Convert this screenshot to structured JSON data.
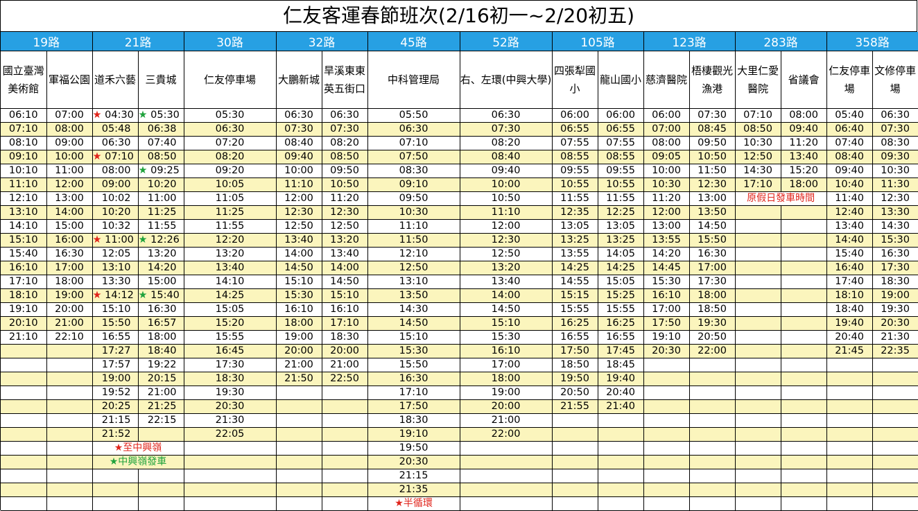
{
  "title": "仁友客運春節班次(2/16初一~2/20初五)",
  "routes": [
    {
      "name": "19路",
      "stops": [
        "國立臺灣美術館",
        "軍福公園"
      ]
    },
    {
      "name": "21路",
      "stops": [
        "道禾六藝",
        "三貴城"
      ]
    },
    {
      "name": "30路",
      "stops": [
        "仁友停車場"
      ]
    },
    {
      "name": "32路",
      "stops": [
        "大鵬新城",
        "旱溪東東英五街口"
      ]
    },
    {
      "name": "45路",
      "stops": [
        "中科管理局"
      ]
    },
    {
      "name": "52路",
      "stops": [
        "右、左環(中興大學)"
      ]
    },
    {
      "name": "105路",
      "stops": [
        "四張犁國小",
        "龍山國小"
      ]
    },
    {
      "name": "123路",
      "stops": [
        "慈濟醫院",
        "梧棲觀光漁港"
      ]
    },
    {
      "name": "283路",
      "stops": [
        "大里仁愛醫院",
        "省議會"
      ]
    },
    {
      "name": "358路",
      "stops": [
        "仁友停車場",
        "文修停車場"
      ]
    }
  ],
  "star": "★",
  "columns": [
    [
      "06:10",
      "07:10",
      "08:10",
      "09:10",
      "10:10",
      "11:10",
      "12:10",
      "13:10",
      "14:10",
      "15:10",
      "15:40",
      "16:10",
      "17:10",
      "18:10",
      "19:10",
      "20:10",
      "21:10"
    ],
    [
      "07:00",
      "08:00",
      "09:00",
      "10:00",
      "11:00",
      "12:00",
      "13:00",
      "14:00",
      "15:00",
      "16:00",
      "16:30",
      "17:00",
      "18:00",
      "19:00",
      "20:00",
      "21:00",
      "22:10"
    ],
    [
      "04:30",
      "05:48",
      "06:30",
      "07:10",
      "08:00",
      "09:00",
      "10:02",
      "10:20",
      "10:32",
      "11:00",
      "12:05",
      "13:10",
      "13:30",
      "14:12",
      "15:10",
      "15:50",
      "16:55",
      "17:27",
      "17:57",
      "19:00",
      "19:52",
      "20:25",
      "21:15",
      "21:52"
    ],
    [
      "05:30",
      "06:38",
      "07:40",
      "08:50",
      "09:25",
      "10:20",
      "11:00",
      "11:25",
      "11:55",
      "12:26",
      "13:20",
      "14:20",
      "15:00",
      "15:40",
      "16:30",
      "16:57",
      "18:00",
      "18:40",
      "19:22",
      "20:15",
      "21:00",
      "21:25",
      "22:15"
    ],
    [
      "05:30",
      "06:30",
      "07:20",
      "08:20",
      "09:20",
      "10:05",
      "11:05",
      "11:25",
      "11:55",
      "12:20",
      "13:20",
      "13:40",
      "14:10",
      "14:25",
      "15:05",
      "15:20",
      "15:55",
      "16:45",
      "17:30",
      "18:30",
      "19:30",
      "20:30",
      "21:30",
      "22:05"
    ],
    [
      "06:30",
      "07:30",
      "08:40",
      "09:40",
      "10:00",
      "11:10",
      "12:00",
      "12:30",
      "12:50",
      "13:40",
      "14:00",
      "14:50",
      "15:10",
      "15:30",
      "16:10",
      "18:00",
      "19:00",
      "20:00",
      "21:00",
      "21:50"
    ],
    [
      "06:30",
      "07:30",
      "08:20",
      "08:50",
      "09:50",
      "10:50",
      "11:20",
      "12:30",
      "12:50",
      "13:20",
      "13:40",
      "14:00",
      "14:50",
      "15:10",
      "16:10",
      "17:10",
      "18:30",
      "20:00",
      "21:00",
      "22:50"
    ],
    [
      "05:50",
      "06:30",
      "07:10",
      "07:50",
      "08:30",
      "09:10",
      "09:50",
      "10:30",
      "11:10",
      "11:50",
      "12:10",
      "12:50",
      "13:10",
      "13:50",
      "14:30",
      "14:50",
      "15:10",
      "15:30",
      "15:50",
      "16:30",
      "17:10",
      "17:50",
      "18:30",
      "19:10",
      "19:50",
      "20:30",
      "21:15",
      "21:35"
    ],
    [
      "06:30",
      "07:30",
      "08:20",
      "08:40",
      "09:40",
      "10:00",
      "10:50",
      "11:10",
      "12:00",
      "12:30",
      "12:50",
      "13:20",
      "13:40",
      "14:00",
      "14:50",
      "15:10",
      "15:30",
      "16:10",
      "17:00",
      "18:00",
      "19:00",
      "20:00",
      "21:00",
      "22:00"
    ],
    [
      "06:00",
      "06:55",
      "07:55",
      "08:55",
      "09:55",
      "10:55",
      "11:55",
      "12:35",
      "13:05",
      "13:25",
      "13:55",
      "14:25",
      "14:55",
      "15:15",
      "15:55",
      "16:25",
      "16:55",
      "17:50",
      "18:50",
      "19:50",
      "20:50",
      "21:55"
    ],
    [
      "06:00",
      "06:55",
      "07:55",
      "08:55",
      "09:55",
      "10:55",
      "11:55",
      "12:25",
      "13:05",
      "13:25",
      "14:05",
      "14:25",
      "15:05",
      "15:25",
      "15:55",
      "16:25",
      "16:55",
      "17:45",
      "18:45",
      "19:40",
      "20:40",
      "21:40"
    ],
    [
      "06:00",
      "07:00",
      "08:00",
      "09:05",
      "10:00",
      "10:30",
      "11:20",
      "12:00",
      "13:00",
      "13:55",
      "14:20",
      "14:45",
      "15:30",
      "16:10",
      "17:00",
      "17:50",
      "19:10",
      "20:30"
    ],
    [
      "07:30",
      "08:45",
      "09:50",
      "10:50",
      "11:50",
      "12:30",
      "13:00",
      "13:50",
      "14:50",
      "15:50",
      "16:30",
      "17:00",
      "17:30",
      "18:00",
      "18:50",
      "19:30",
      "20:50",
      "22:00"
    ],
    [
      "07:10",
      "08:50",
      "10:30",
      "12:50",
      "14:30",
      "17:10"
    ],
    [
      "08:00",
      "09:40",
      "11:20",
      "13:40",
      "15:20",
      "18:00"
    ],
    [
      "05:40",
      "06:40",
      "07:40",
      "08:40",
      "09:40",
      "10:40",
      "11:40",
      "12:40",
      "13:40",
      "14:40",
      "15:40",
      "16:40",
      "17:40",
      "18:10",
      "18:40",
      "19:40",
      "20:40",
      "21:45"
    ],
    [
      "06:30",
      "07:30",
      "08:30",
      "09:30",
      "10:30",
      "11:30",
      "12:30",
      "13:30",
      "14:30",
      "15:30",
      "16:30",
      "17:30",
      "18:30",
      "19:00",
      "19:30",
      "20:30",
      "21:30",
      "22:35"
    ]
  ],
  "notes": {
    "route21_red": "★至中興嶺",
    "route21_green": "★中興嶺發車",
    "route45_red": "★半循環",
    "route283": "原假日發車時間"
  },
  "colors": {
    "header_blue": "#27a0e3",
    "stripe_yellow": "#fbf5bd",
    "red": "#e0241b",
    "green": "#1fa23c"
  }
}
